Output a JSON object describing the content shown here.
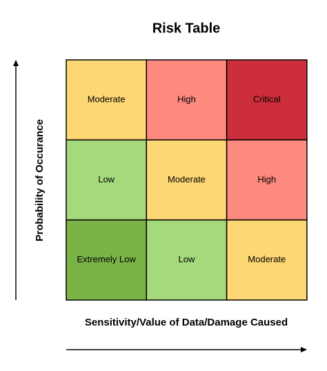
{
  "title": "Risk Table",
  "y_axis_label": "Probability of Occurance",
  "x_axis_label": "Sensitivity/Value of Data/Damage Caused",
  "grid": {
    "rows": [
      [
        {
          "label": "Moderate",
          "color": "#fdd773"
        },
        {
          "label": "High",
          "color": "#fd8a7e"
        },
        {
          "label": "Critical",
          "color": "#cc2e3b"
        }
      ],
      [
        {
          "label": "Low",
          "color": "#a6d97c"
        },
        {
          "label": "Moderate",
          "color": "#fdd773"
        },
        {
          "label": "High",
          "color": "#fd8a7e"
        }
      ],
      [
        {
          "label": "Extremely Low",
          "color": "#7ab447"
        },
        {
          "label": "Low",
          "color": "#a6d97c"
        },
        {
          "label": "Moderate",
          "color": "#fdd773"
        }
      ]
    ]
  }
}
